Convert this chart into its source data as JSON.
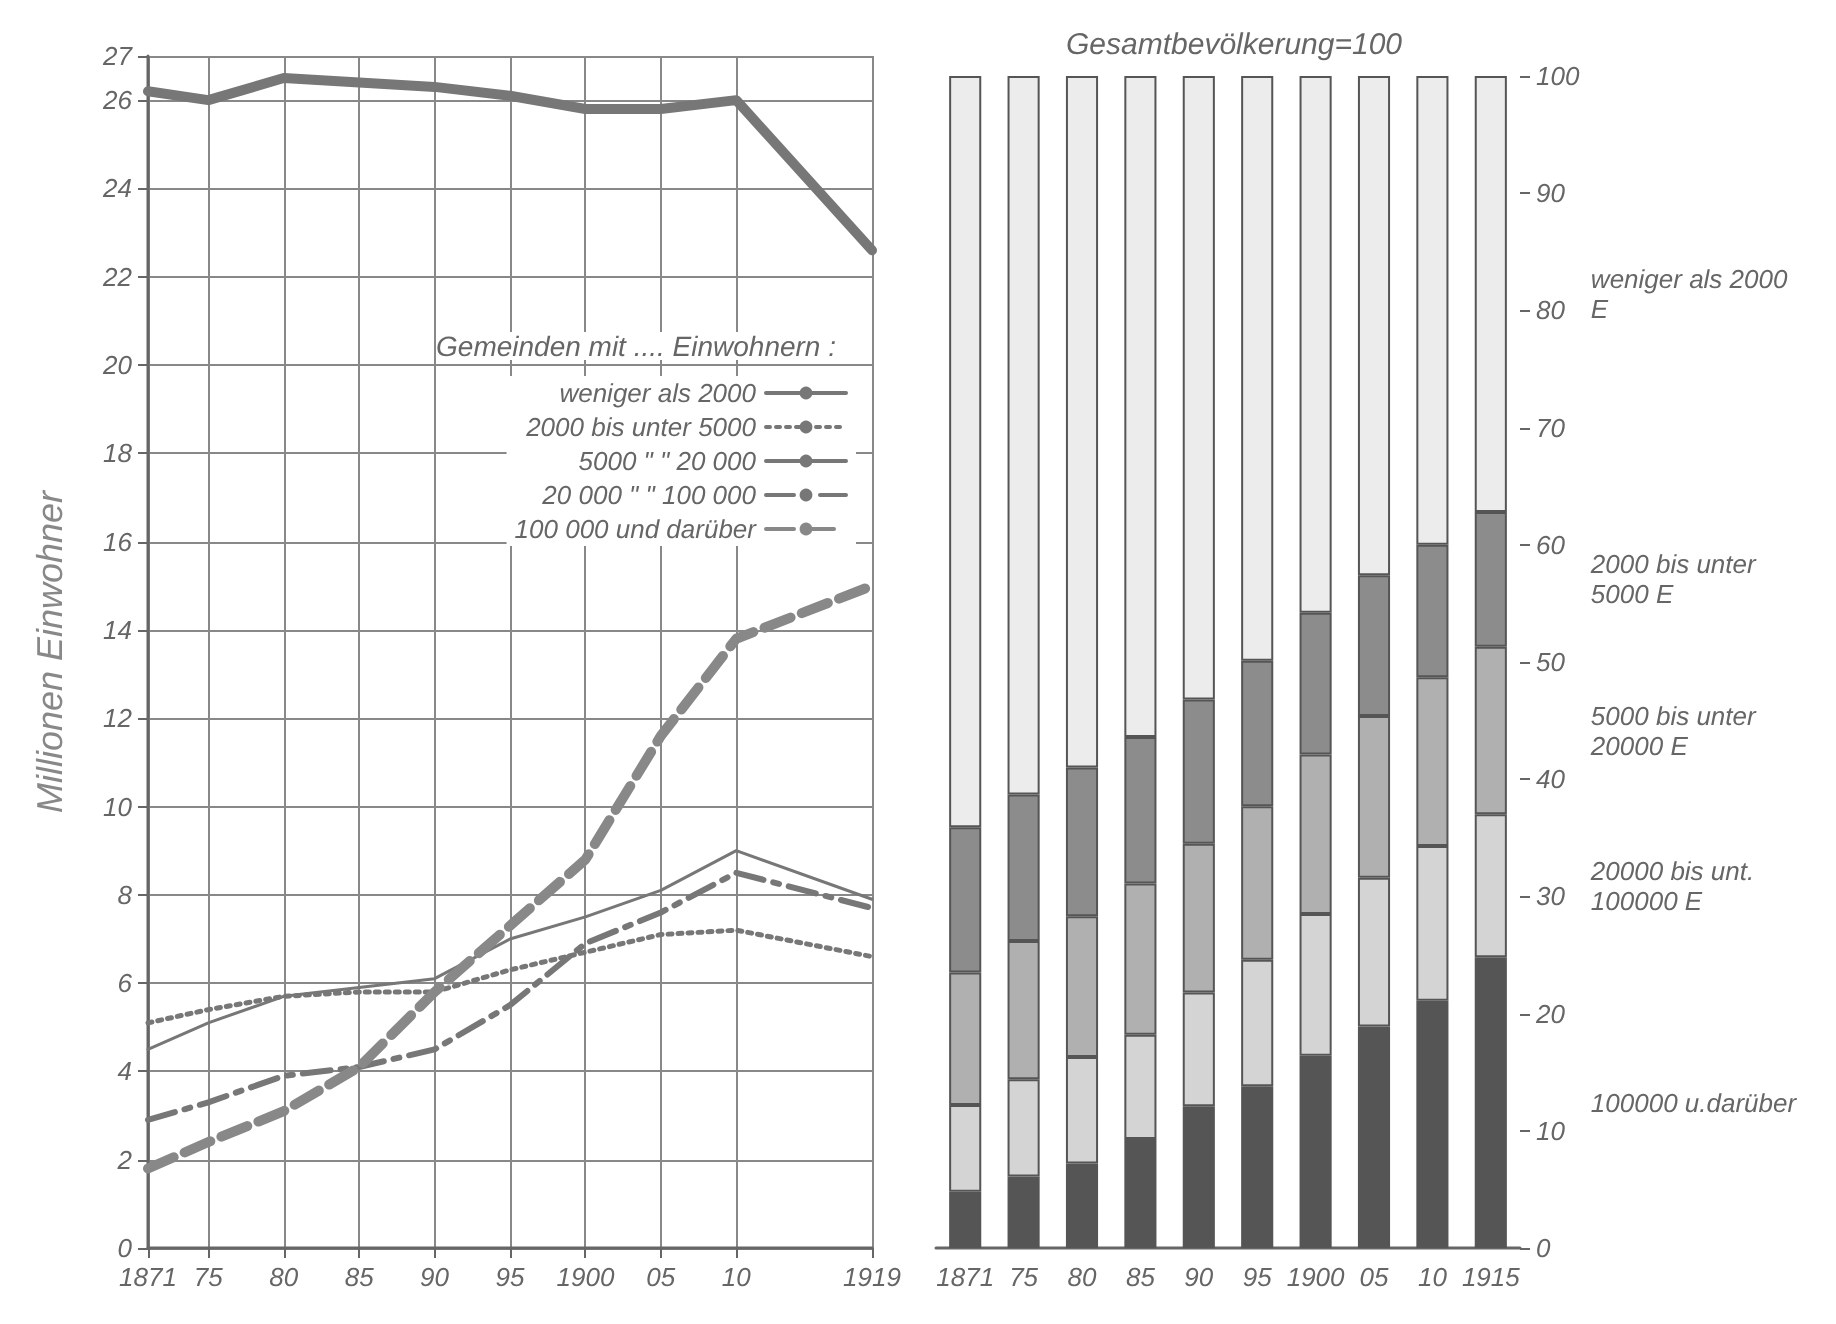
{
  "chart_data": [
    {
      "type": "line",
      "ylabel": "Millionen Einwohner",
      "legend_title": "Gemeinden mit .... Einwohnern :",
      "x": [
        1871,
        1875,
        1880,
        1885,
        1890,
        1895,
        1900,
        1905,
        1910,
        1919
      ],
      "series": [
        {
          "name": "weniger als 2000",
          "color": "#777777",
          "line_style": "solid",
          "values": [
            26.2,
            26.0,
            26.5,
            26.4,
            26.3,
            26.1,
            25.8,
            25.8,
            26.0,
            22.6
          ]
        },
        {
          "name": "2000 bis unter 5000",
          "color": "#777777",
          "line_style": "dotted",
          "values": [
            5.1,
            5.4,
            5.7,
            5.8,
            5.8,
            6.3,
            6.7,
            7.1,
            7.2,
            6.6
          ]
        },
        {
          "name": "5000 \" \" 20 000",
          "color": "#777777",
          "line_style": "solid",
          "values": [
            4.5,
            5.1,
            5.7,
            5.9,
            6.1,
            7.0,
            7.5,
            8.1,
            9.0,
            7.9
          ]
        },
        {
          "name": "20 000 \" \" 100 000",
          "color": "#777777",
          "line_style": "dashed",
          "values": [
            2.9,
            3.3,
            3.9,
            4.1,
            4.5,
            5.5,
            6.9,
            7.6,
            8.5,
            7.7
          ]
        },
        {
          "name": "100 000 und darüber",
          "color": "#888888",
          "line_style": "dashed",
          "values": [
            1.8,
            2.4,
            3.1,
            4.1,
            5.8,
            7.3,
            8.8,
            11.6,
            13.8,
            15.0
          ]
        }
      ],
      "xlim": [
        1871,
        1919
      ],
      "xticks": [
        1871,
        {
          "value": 1875,
          "label": "75"
        },
        {
          "value": 1880,
          "label": "80"
        },
        {
          "value": 1885,
          "label": "85"
        },
        {
          "value": 1890,
          "label": "90"
        },
        {
          "value": 1895,
          "label": "95"
        },
        1900,
        {
          "value": 1905,
          "label": "05"
        },
        {
          "value": 1910,
          "label": "10"
        },
        1919
      ],
      "ylim": [
        0,
        27
      ],
      "yticks": [
        0,
        2,
        4,
        6,
        8,
        10,
        12,
        14,
        16,
        18,
        20,
        22,
        24,
        26,
        27
      ],
      "grid": true,
      "legend": "top right",
      "marker": "none"
    },
    {
      "type": "bar",
      "stacked": true,
      "title": "Gesamtbevölkerung=100",
      "categories": [
        "1871",
        "75",
        "80",
        "85",
        "90",
        "95",
        "1900",
        "05",
        "10",
        "1915"
      ],
      "series": [
        {
          "name": "100000 u.darüber",
          "color": "#555555",
          "values": [
            4.8,
            6.1,
            7.2,
            9.3,
            12.1,
            13.8,
            16.4,
            18.9,
            21.1,
            24.8
          ]
        },
        {
          "name": "20000 bis unt. 100000 E",
          "color": "#d4d4d4",
          "values": [
            7.4,
            8.3,
            9.1,
            8.9,
            9.7,
            10.8,
            12.1,
            12.7,
            13.2,
            12.2
          ]
        },
        {
          "name": "5000 bis unter 20000 E",
          "color": "#b0b0b0",
          "values": [
            11.3,
            11.8,
            12.0,
            12.9,
            12.7,
            13.1,
            13.6,
            13.8,
            14.4,
            14.3
          ]
        },
        {
          "name": "2000 bis unter 5000 E",
          "color": "#8c8c8c",
          "values": [
            12.4,
            12.5,
            12.7,
            12.5,
            12.3,
            12.4,
            12.1,
            12.0,
            11.3,
            11.5
          ]
        },
        {
          "name": "weniger als 2000 E",
          "color": "#ececec",
          "values": [
            64.1,
            61.3,
            59.0,
            56.4,
            53.2,
            49.9,
            45.8,
            42.6,
            40.0,
            37.2
          ]
        }
      ],
      "ylim": [
        0,
        100
      ],
      "yticks": [
        0,
        10,
        20,
        30,
        40,
        50,
        60,
        70,
        80,
        90,
        100
      ],
      "grid": false,
      "legend": false
    }
  ]
}
